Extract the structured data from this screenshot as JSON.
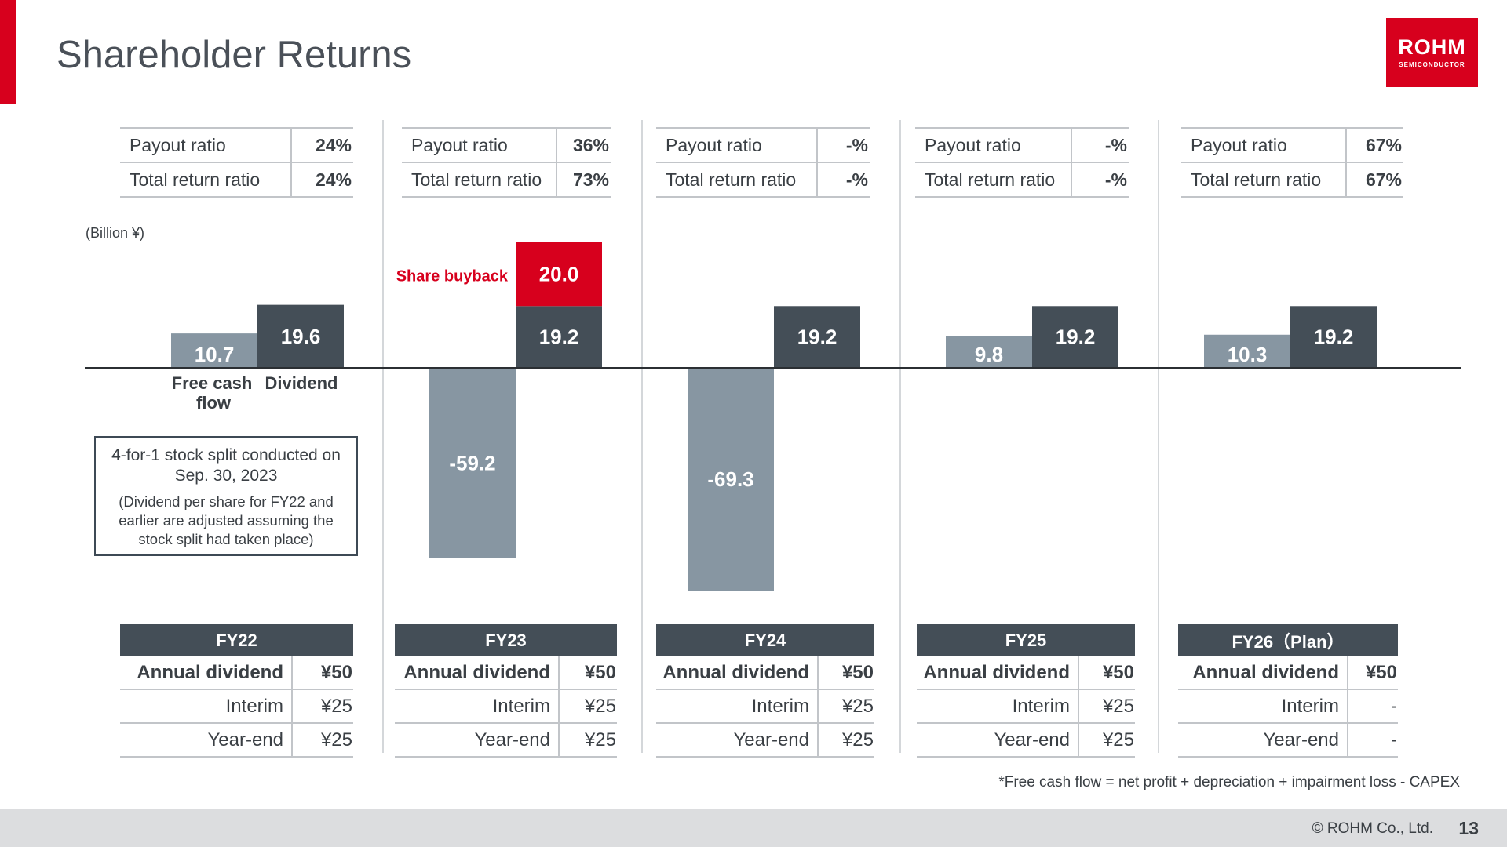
{
  "title": "Shareholder Returns",
  "logo": {
    "main": "ROHM",
    "sub": "SEMICONDUCTOR"
  },
  "colors": {
    "accent": "#d7001d",
    "fcf": "#8796a2",
    "dividend": "#444e57",
    "buyback": "#d7001d",
    "header": "#444e57"
  },
  "unit_label": "(Billion ¥)",
  "ratio_labels": {
    "payout": "Payout ratio",
    "total_return": "Total return ratio"
  },
  "dividend_labels": {
    "annual": "Annual dividend",
    "interim": "Interim",
    "year_end": "Year-end"
  },
  "periods": [
    {
      "fy": "FY22",
      "payout_ratio": "24%",
      "total_return_ratio": "24%",
      "annual": "¥50",
      "interim": "¥25",
      "year_end": "¥25"
    },
    {
      "fy": "FY23",
      "payout_ratio": "36%",
      "total_return_ratio": "73%",
      "annual": "¥50",
      "interim": "¥25",
      "year_end": "¥25"
    },
    {
      "fy": "FY24",
      "payout_ratio": "-%",
      "total_return_ratio": "-%",
      "annual": "¥50",
      "interim": "¥25",
      "year_end": "¥25"
    },
    {
      "fy": "FY25",
      "payout_ratio": "-%",
      "total_return_ratio": "-%",
      "annual": "¥50",
      "interim": "¥25",
      "year_end": "¥25"
    },
    {
      "fy": "FY26（Plan）",
      "payout_ratio": "67%",
      "total_return_ratio": "67%",
      "annual": "¥50",
      "interim": "-",
      "year_end": "-"
    }
  ],
  "chart_data": {
    "type": "bar",
    "categories": [
      "FY22",
      "FY23",
      "FY24",
      "FY25",
      "FY26（Plan）"
    ],
    "unit": "(Billion ¥)",
    "series": [
      {
        "name": "Free cash flow",
        "values": [
          10.7,
          -59.2,
          -69.3,
          9.8,
          10.3
        ]
      },
      {
        "name": "Dividend",
        "values": [
          19.6,
          19.2,
          19.2,
          19.2,
          19.2
        ]
      },
      {
        "name": "Share buyback",
        "values": [
          0,
          20.0,
          0,
          0,
          0
        ]
      }
    ],
    "value_labels": {
      "fcf": [
        "10.7",
        "-59.2",
        "-69.3",
        "9.8",
        "10.3"
      ],
      "dividend": [
        "19.6",
        "19.2",
        "19.2",
        "19.2",
        "19.2"
      ],
      "buyback": [
        "",
        "20.0",
        "",
        "",
        ""
      ]
    },
    "axis_labels": {
      "fcf": "Free cash flow",
      "dividend": "Dividend"
    },
    "buyback_label": "Share buyback"
  },
  "note": {
    "main": "4-for-1 stock split conducted on Sep. 30, 2023",
    "sub": "(Dividend per share for FY22 and earlier are adjusted assuming the stock split had taken place)"
  },
  "footnote": "*Free cash flow = net profit + depreciation + impairment loss - CAPEX",
  "footer": {
    "copyright": "© ROHM Co., Ltd.",
    "page": "13"
  }
}
